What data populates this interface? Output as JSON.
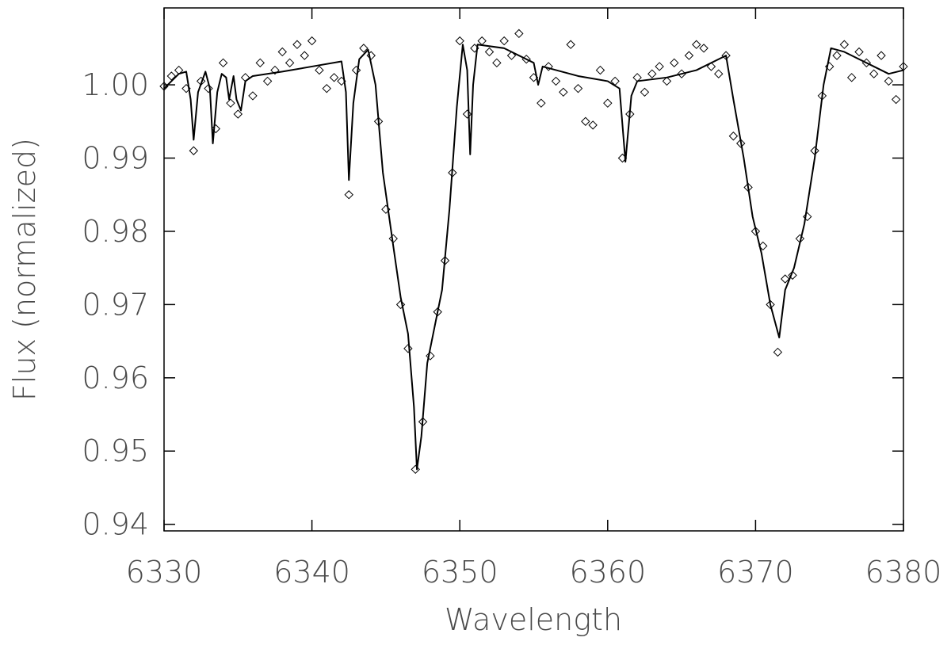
{
  "chart_data": {
    "type": "scatter",
    "x_label": "Wavelength",
    "y_label": "Flux (normalized)",
    "xlim": [
      6330,
      6380
    ],
    "ylim": [
      0.9391,
      1.0105
    ],
    "xticks": [
      6330,
      6340,
      6350,
      6360,
      6370,
      6380
    ],
    "yticks": [
      0.94,
      0.95,
      0.96,
      0.97,
      0.98,
      0.99,
      {
        "value": 1.0,
        "label": "1.00"
      }
    ],
    "series": [
      {
        "mode": "markers",
        "marker": "diamond",
        "color": "#000000",
        "x": [
          6330.0,
          6330.5,
          6331.0,
          6331.5,
          6332.0,
          6332.5,
          6333.0,
          6333.5,
          6334.0,
          6334.5,
          6335.0,
          6335.5,
          6336.0,
          6336.5,
          6337.0,
          6337.5,
          6338.0,
          6338.5,
          6339.0,
          6339.5,
          6340.0,
          6340.5,
          6341.0,
          6341.5,
          6342.0,
          6342.5,
          6343.0,
          6343.5,
          6344.0,
          6344.5,
          6345.0,
          6345.5,
          6346.0,
          6346.5,
          6347.0,
          6347.5,
          6348.0,
          6348.5,
          6349.0,
          6349.5,
          6350.0,
          6350.5,
          6351.0,
          6351.5,
          6352.0,
          6352.5,
          6353.0,
          6353.5,
          6354.0,
          6354.5,
          6355.0,
          6355.5,
          6356.0,
          6356.5,
          6357.0,
          6357.5,
          6358.0,
          6358.5,
          6359.0,
          6359.5,
          6360.0,
          6360.5,
          6361.0,
          6361.5,
          6362.0,
          6362.5,
          6363.0,
          6363.5,
          6364.0,
          6364.5,
          6365.0,
          6365.5,
          6366.0,
          6366.5,
          6367.0,
          6367.5,
          6368.0,
          6368.5,
          6369.0,
          6369.5,
          6370.0,
          6370.5,
          6371.0,
          6371.5,
          6372.0,
          6372.5,
          6373.0,
          6373.5,
          6374.0,
          6374.5,
          6375.0,
          6375.5,
          6376.0,
          6376.5,
          6377.0,
          6377.5,
          6378.0,
          6378.5,
          6379.0,
          6379.5,
          6380.0
        ],
        "values": [
          0.9998,
          1.0012,
          1.002,
          0.9995,
          0.991,
          1.0005,
          0.9995,
          0.994,
          1.003,
          0.9975,
          0.996,
          1.001,
          0.9985,
          1.003,
          1.0005,
          1.002,
          1.0045,
          1.003,
          1.0055,
          1.004,
          1.006,
          1.002,
          0.9995,
          1.001,
          1.0005,
          0.985,
          1.002,
          1.005,
          1.004,
          0.995,
          0.983,
          0.979,
          0.97,
          0.964,
          0.9475,
          0.954,
          0.963,
          0.969,
          0.976,
          0.988,
          1.006,
          0.996,
          1.005,
          1.006,
          1.0045,
          1.003,
          1.006,
          1.004,
          1.007,
          1.0035,
          1.001,
          0.9975,
          1.0025,
          1.0005,
          0.999,
          1.0055,
          0.9995,
          0.995,
          0.9945,
          1.002,
          0.9975,
          1.0005,
          0.99,
          0.996,
          1.001,
          0.999,
          1.0015,
          1.0025,
          1.0005,
          1.003,
          1.0015,
          1.004,
          1.0055,
          1.005,
          1.0025,
          1.0015,
          1.004,
          0.993,
          0.992,
          0.986,
          0.98,
          0.978,
          0.97,
          0.9635,
          0.9735,
          0.974,
          0.979,
          0.982,
          0.991,
          0.9985,
          1.0025,
          1.004,
          1.0055,
          1.001,
          1.0045,
          1.003,
          1.0015,
          1.004,
          1.0005,
          0.998,
          1.0025
        ]
      },
      {
        "mode": "line",
        "color": "#000000",
        "x": [
          6330,
          6330.5,
          6331,
          6331.5,
          6331.8,
          6332.0,
          6332.3,
          6332.8,
          6333.1,
          6333.3,
          6333.6,
          6333.9,
          6334.2,
          6334.4,
          6334.7,
          6334.9,
          6335.2,
          6335.5,
          6336,
          6338,
          6340,
          6342,
          6342.3,
          6342.5,
          6342.8,
          6343.2,
          6343.8,
          6344.3,
          6344.8,
          6345.5,
          6346,
          6346.5,
          6346.9,
          6347.1,
          6347.4,
          6347.8,
          6348.3,
          6348.8,
          6349.3,
          6349.8,
          6350.2,
          6350.5,
          6350.7,
          6350.9,
          6351.2,
          6353,
          6355,
          6355.3,
          6355.6,
          6358,
          6360,
          6360.8,
          6361.2,
          6361.6,
          6362,
          6364,
          6366,
          6368,
          6368.5,
          6369.2,
          6369.8,
          6370.4,
          6371,
          6371.6,
          6372,
          6372.6,
          6373.3,
          6374,
          6374.6,
          6375.1,
          6376,
          6378,
          6379,
          6380
        ],
        "values": [
          0.9995,
          1.0005,
          1.0015,
          1.0018,
          0.998,
          0.9925,
          0.999,
          1.0018,
          0.9995,
          0.992,
          0.999,
          1.0015,
          1.001,
          0.998,
          1.0012,
          0.998,
          0.9965,
          1.0005,
          1.0012,
          1.0018,
          1.0025,
          1.0032,
          0.999,
          0.987,
          0.9975,
          1.0035,
          1.0048,
          1.0,
          0.988,
          0.978,
          0.971,
          0.966,
          0.956,
          0.9475,
          0.952,
          0.962,
          0.967,
          0.972,
          0.983,
          0.997,
          1.0055,
          1.002,
          0.9905,
          1.0,
          1.0055,
          1.005,
          1.003,
          1.0,
          1.0025,
          1.0012,
          1.0005,
          0.9995,
          0.9895,
          0.9985,
          1.0005,
          1.001,
          1.002,
          1.004,
          0.998,
          0.99,
          0.982,
          0.977,
          0.97,
          0.9655,
          0.972,
          0.975,
          0.981,
          0.99,
          1.0,
          1.005,
          1.0045,
          1.0025,
          1.0015,
          1.002
        ]
      }
    ]
  }
}
